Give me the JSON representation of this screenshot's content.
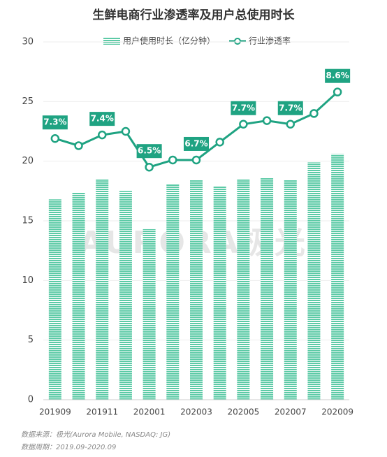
{
  "chart_data": {
    "type": "bar_line",
    "title": "生鲜电商行业渗透率及用户总使用时长",
    "categories": [
      "201909",
      null,
      "201911",
      null,
      "202001",
      null,
      "202003",
      null,
      "202005",
      null,
      "202007",
      null,
      "202009"
    ],
    "series": [
      {
        "name": "用户使用时长（亿分钟）",
        "type": "bar",
        "color": "#5ccaa6",
        "values": [
          16.8,
          17.4,
          18.5,
          17.5,
          14.3,
          18.1,
          18.45,
          17.9,
          18.5,
          18.6,
          18.4,
          19.9,
          20.6
        ]
      },
      {
        "name": "行业渗透率",
        "type": "line",
        "axis": "y2",
        "color": "#1fa382",
        "values": [
          7.3,
          7.1,
          7.4,
          7.5,
          6.5,
          6.7,
          6.7,
          7.2,
          7.7,
          7.8,
          7.7,
          8.0,
          8.6
        ],
        "value_labels": [
          "7.3%",
          null,
          "7.4%",
          null,
          "6.5%",
          null,
          "6.7%",
          null,
          "7.7%",
          null,
          "7.7%",
          null,
          "8.6%"
        ]
      }
    ],
    "ylim": [
      0,
      30
    ],
    "yticks": [
      0,
      5,
      10,
      15,
      20,
      25,
      30
    ],
    "y2lim": [
      0,
      10
    ],
    "grid": true,
    "watermark": "AURORA极光",
    "source": "数据来源：极光(Aurora Mobile, NASDAQ: JG)",
    "period": "数据周期：2019.09-2020.09"
  }
}
